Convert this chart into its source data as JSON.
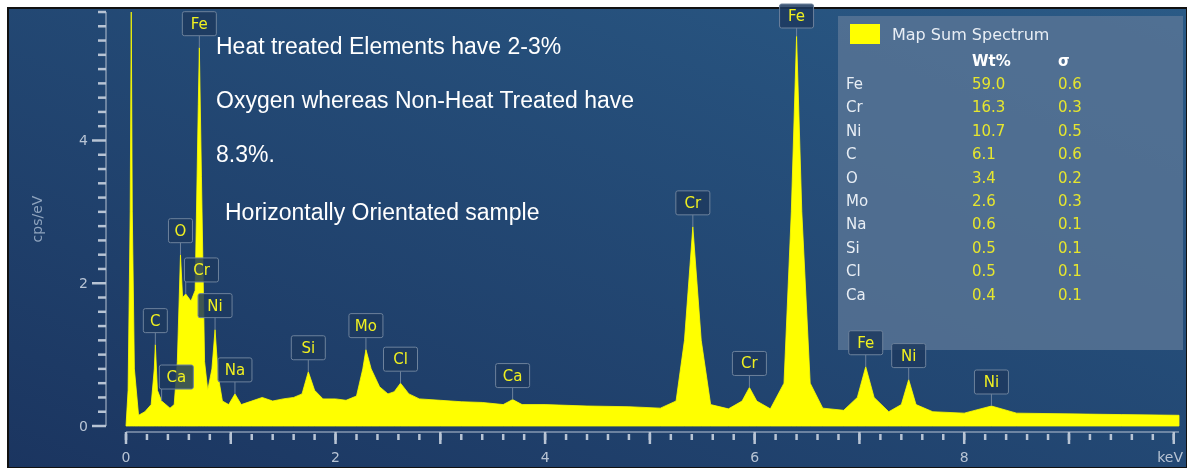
{
  "chart_data": [
    {
      "type": "area",
      "ylabel": "cps/eV",
      "xlabel": "keV",
      "xlim": [
        0,
        10.05
      ],
      "ylim": [
        0,
        5.8
      ],
      "xticks": [
        0,
        {
          "value": 1,
          "label": null
        },
        2,
        {
          "value": 3,
          "label": null
        },
        4,
        {
          "value": 5,
          "label": null
        },
        6,
        {
          "value": 7,
          "label": null
        },
        8,
        {
          "value": 9,
          "label": null
        },
        {
          "value": 10,
          "label": null
        }
      ],
      "yticks": [
        0,
        2,
        4
      ],
      "legend": "top right",
      "series": [
        {
          "name": "Map Sum Spectrum",
          "color": "#ffff00",
          "x": [
            0,
            0.02,
            0.04,
            0.05,
            0.06,
            0.08,
            0.12,
            0.18,
            0.24,
            0.27,
            0.28,
            0.3,
            0.34,
            0.38,
            0.42,
            0.46,
            0.49,
            0.52,
            0.54,
            0.57,
            0.62,
            0.66,
            0.69,
            0.7,
            0.72,
            0.75,
            0.78,
            0.82,
            0.85,
            0.88,
            0.92,
            0.98,
            1.04,
            1.1,
            1.2,
            1.3,
            1.4,
            1.5,
            1.6,
            1.68,
            1.74,
            1.8,
            1.88,
            2.0,
            2.1,
            2.2,
            2.26,
            2.29,
            2.34,
            2.42,
            2.5,
            2.56,
            2.62,
            2.7,
            2.8,
            3.0,
            3.2,
            3.4,
            3.6,
            3.69,
            3.78,
            4.0,
            4.4,
            4.8,
            5.1,
            5.25,
            5.33,
            5.41,
            5.49,
            5.58,
            5.75,
            5.88,
            5.95,
            6.02,
            6.15,
            6.28,
            6.35,
            6.4,
            6.45,
            6.53,
            6.65,
            6.85,
            6.98,
            7.06,
            7.14,
            7.28,
            7.4,
            7.47,
            7.54,
            7.7,
            8.0,
            8.26,
            8.5,
            9.0,
            9.5,
            10.05
          ],
          "values": [
            0,
            0.5,
            3.0,
            5.8,
            3.0,
            0.8,
            0.15,
            0.2,
            0.3,
            0.8,
            1.14,
            0.5,
            0.35,
            0.3,
            0.25,
            0.3,
            0.9,
            2.4,
            1.8,
            1.85,
            1.75,
            1.9,
            4.5,
            5.3,
            3.5,
            0.9,
            0.5,
            0.8,
            1.35,
            0.7,
            0.35,
            0.3,
            0.45,
            0.3,
            0.35,
            0.4,
            0.35,
            0.38,
            0.4,
            0.45,
            0.76,
            0.5,
            0.38,
            0.38,
            0.36,
            0.42,
            0.8,
            1.07,
            0.8,
            0.55,
            0.45,
            0.48,
            0.6,
            0.45,
            0.38,
            0.36,
            0.34,
            0.33,
            0.3,
            0.37,
            0.3,
            0.3,
            0.28,
            0.27,
            0.25,
            0.35,
            1.2,
            2.79,
            1.2,
            0.3,
            0.24,
            0.35,
            0.54,
            0.35,
            0.24,
            0.6,
            3.0,
            5.46,
            3.0,
            0.6,
            0.25,
            0.22,
            0.4,
            0.83,
            0.4,
            0.2,
            0.3,
            0.65,
            0.3,
            0.2,
            0.18,
            0.28,
            0.18,
            0.17,
            0.16,
            0.15
          ]
        }
      ],
      "annotations": [
        "Heat treated Elements have 2-3% Oxygen whereas Non-Heat Treated have 8.3%.",
        "Horizontally Orientated sample",
        {
          "text": "C",
          "x": 0.28,
          "y": 1.14
        },
        {
          "text": "Ca",
          "x": 0.34,
          "y": 0.35
        },
        {
          "text": "O",
          "x": 0.52,
          "y": 2.4
        },
        {
          "text": "Cr",
          "x": 0.57,
          "y": 1.85
        },
        {
          "text": "Fe",
          "x": 0.7,
          "y": 5.3
        },
        {
          "text": "Ni",
          "x": 0.85,
          "y": 1.35
        },
        {
          "text": "Na",
          "x": 1.04,
          "y": 0.45
        },
        {
          "text": "Si",
          "x": 1.74,
          "y": 0.76
        },
        {
          "text": "Mo",
          "x": 2.29,
          "y": 1.07
        },
        {
          "text": "Cl",
          "x": 2.62,
          "y": 0.6
        },
        {
          "text": "Ca",
          "x": 3.69,
          "y": 0.37
        },
        {
          "text": "Cr",
          "x": 5.41,
          "y": 2.79
        },
        {
          "text": "Cr",
          "x": 5.95,
          "y": 0.54
        },
        {
          "text": "Fe",
          "x": 6.4,
          "y": 5.46
        },
        {
          "text": "Fe",
          "x": 7.06,
          "y": 0.83
        },
        {
          "text": "Ni",
          "x": 7.47,
          "y": 0.65
        },
        {
          "text": "Ni",
          "x": 8.26,
          "y": 0.28
        }
      ]
    },
    {
      "type": "other",
      "annotations": [
        "Wt%",
        "σ",
        "Fe",
        "59.0",
        "0.6",
        "Cr",
        "16.3",
        "0.3",
        "Ni",
        "10.7",
        "0.5",
        "C",
        "6.1",
        "0.6",
        "O",
        "3.4",
        "0.2",
        "Mo",
        "2.6",
        "0.3",
        "Na",
        "0.6",
        "0.1",
        "Si",
        "0.5",
        "0.1",
        "Cl",
        "0.5",
        "0.1",
        "Ca",
        "0.4",
        "0.1"
      ]
    }
  ]
}
